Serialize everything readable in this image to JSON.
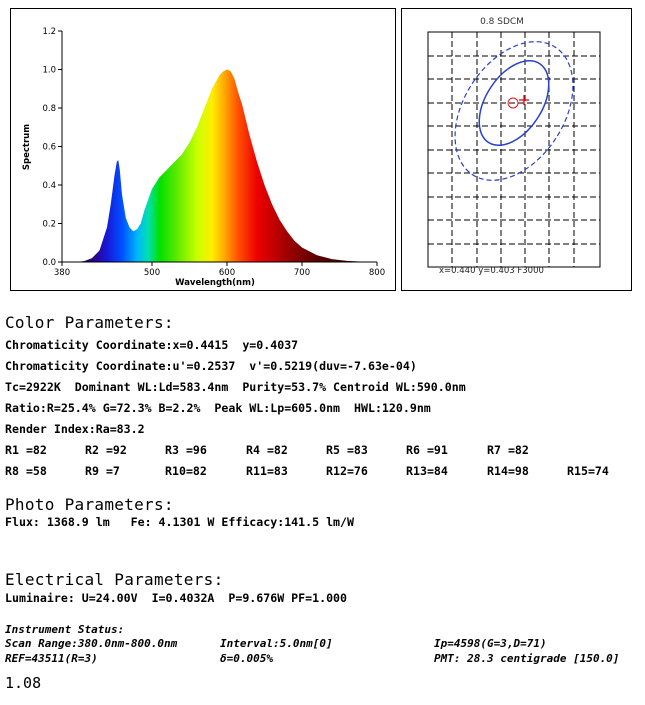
{
  "chart_data": [
    {
      "type": "area",
      "xlabel": "Wavelength(nm)",
      "ylabel": "Spectrum",
      "xlim": [
        380,
        800
      ],
      "ylim": [
        0,
        1.2
      ],
      "x_ticks": [
        "380",
        "500",
        "600",
        "700",
        "800"
      ],
      "y_ticks": [
        "0.0",
        "0.2",
        "0.4",
        "0.6",
        "0.8",
        "1.0",
        "1.2"
      ],
      "grid": false,
      "fill": "visible-spectrum color gradient",
      "x": [
        380,
        400,
        410,
        420,
        430,
        440,
        445,
        450,
        453,
        455,
        457,
        460,
        465,
        470,
        475,
        480,
        485,
        490,
        500,
        510,
        520,
        530,
        540,
        550,
        560,
        570,
        580,
        590,
        595,
        600,
        605,
        610,
        615,
        620,
        630,
        640,
        650,
        660,
        670,
        680,
        690,
        700,
        720,
        740,
        760,
        780,
        800
      ],
      "y": [
        0,
        0,
        0.005,
        0.02,
        0.06,
        0.18,
        0.3,
        0.45,
        0.52,
        0.53,
        0.48,
        0.35,
        0.23,
        0.18,
        0.16,
        0.17,
        0.2,
        0.27,
        0.38,
        0.44,
        0.48,
        0.52,
        0.56,
        0.62,
        0.7,
        0.8,
        0.9,
        0.97,
        0.99,
        1.0,
        0.99,
        0.95,
        0.88,
        0.82,
        0.66,
        0.52,
        0.4,
        0.3,
        0.22,
        0.16,
        0.11,
        0.075,
        0.035,
        0.015,
        0.006,
        0.002,
        0
      ]
    },
    {
      "type": "scatter",
      "title": "0.8 SDCM",
      "readout": "x=0.440 y=0.403 F3000",
      "marker_color": "#e8131f",
      "ellipse_color": "#2a3fd0",
      "points": [
        {
          "x": 0.4415,
          "y": 0.4037
        }
      ]
    }
  ],
  "color": {
    "heading": "Color Parameters:",
    "lines": [
      "Chromaticity Coordinate:x=0.4415  y=0.4037",
      "Chromaticity Coordinate:u'=0.2537  v'=0.5219(duv=-7.63e-04)",
      "Tc=2922K  Dominant WL:Ld=583.4nm  Purity=53.7% Centroid WL:590.0nm",
      "Ratio:R=25.4% G=72.3% B=2.2%  Peak WL:Lp=605.0nm  HWL:120.9nm",
      "Render Index:Ra=83.2"
    ],
    "r_row1": [
      "R1 =82",
      "R2 =92",
      "R3 =96",
      "R4 =82",
      "R5 =83",
      "R6 =91",
      "R7 =82"
    ],
    "r_row2": [
      "R8 =58",
      "R9 =7",
      "R10=82",
      "R11=83",
      "R12=76",
      "R13=84",
      "R14=98",
      "R15=74"
    ]
  },
  "photo": {
    "heading": "Photo Parameters:",
    "line": "Flux: 1368.9 lm   Fe: 4.1301 W Efficacy:141.5 lm/W"
  },
  "electrical": {
    "heading": "Electrical Parameters:",
    "line": "Luminaire: U=24.00V  I=0.4032A  P=9.676W PF=1.000"
  },
  "instrument": {
    "heading": "Instrument Status:",
    "scan": "Scan Range:380.0nm-800.0nm",
    "interval": "Interval:5.0nm[0]",
    "ip": "Ip=4598(G=3,D=71)",
    "ref": "REF=43511(R=3)",
    "delta": "δ=0.005%",
    "pmt": "PMT: 28.3 centigrade [150.0]"
  },
  "version": "1.08"
}
